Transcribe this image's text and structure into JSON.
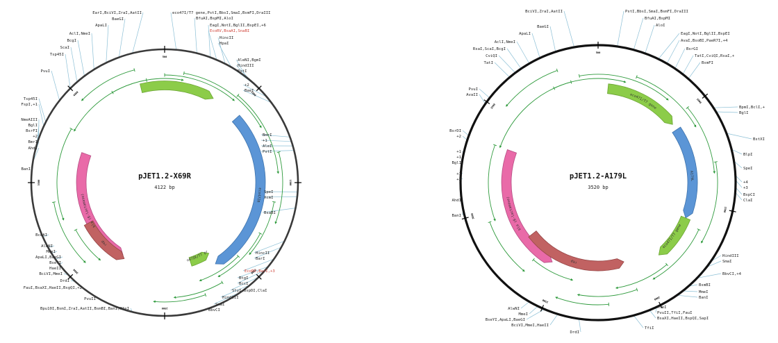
{
  "maps": [
    {
      "id": "map1",
      "title": "pJET1.2-X69R",
      "size_text": "4122 bp",
      "ticks": [
        "500",
        "1000",
        "1500",
        "2000",
        "2500",
        "3000",
        "3500",
        "4000"
      ],
      "features": [
        {
          "label": "bla (ß-lactamase)",
          "color": "#e96aa8"
        },
        {
          "label": "eco47IR",
          "color": "#5b95d6"
        },
        {
          "label": "rep",
          "color": "#c16262"
        },
        {
          "label": "eco47IR/T7 prom",
          "color": "#8ccc49"
        },
        {
          "label": "",
          "color": "#8ccc49"
        }
      ],
      "labels": [
        {
          "text": "EarI,BciVI,ZraI,AatII"
        },
        {
          "text": "BaeGI"
        },
        {
          "text": "ApaLI"
        },
        {
          "text": "AclI,NmeI"
        },
        {
          "text": "BcgI"
        },
        {
          "text": "ScaI"
        },
        {
          "text": "Tsp45I"
        },
        {
          "text": "PvuI"
        },
        {
          "text": "Tsp45I"
        },
        {
          "text": "FspI,+1"
        },
        {
          "text": "NmeAIII"
        },
        {
          "text": "BglI"
        },
        {
          "text": "BsrFI"
        },
        {
          "text": "+2"
        },
        {
          "text": "BmrI"
        },
        {
          "text": "AhdI"
        },
        {
          "text": "BanI"
        },
        {
          "text": "BceAI"
        },
        {
          "text": "AleNI"
        },
        {
          "text": "MmeI"
        },
        {
          "text": "ApaLI,BaeGI"
        },
        {
          "text": "BseYI"
        },
        {
          "text": "HaeII"
        },
        {
          "text": "BciVI,MmeI"
        },
        {
          "text": "DrdI"
        },
        {
          "text": "FauI,BsaXI,HaeII,BsgQI,+2"
        },
        {
          "text": "PvuII"
        },
        {
          "text": "Bpu10I,BsmI,ZraI,AatII,BsmBI,BanI,MfeI"
        },
        {
          "text": "eco47I/T7 gene,PstI,BbsI,SmaI,BsmFI,DraIII"
        },
        {
          "text": "BfuAI,BspMI,AloI"
        },
        {
          "text": "EagI,NotI,BglII,BspEI,+6"
        },
        {
          "text": "EcoRV,BsaAI,SnaBI",
          "red": true
        },
        {
          "text": "HincII"
        },
        {
          "text": "HpaI"
        },
        {
          "text": "AleNI,BgmI"
        },
        {
          "text": "HindIII"
        },
        {
          "text": "PstI"
        },
        {
          "text": "+2"
        },
        {
          "text": "BaeI"
        },
        {
          "text": "BmrI"
        },
        {
          "text": "+1"
        },
        {
          "text": "AleI"
        },
        {
          "text": "PstI"
        },
        {
          "text": "SpeI"
        },
        {
          "text": "XcmI"
        },
        {
          "text": "BsaBI"
        },
        {
          "text": "HincII"
        },
        {
          "text": "BarI"
        },
        {
          "text": "EcoRV,BarI,+3",
          "red": true
        },
        {
          "text": "BtgI"
        },
        {
          "text": "BccI"
        },
        {
          "text": "StyI,BspDI,ClaI"
        },
        {
          "text": "HindIII"
        },
        {
          "text": "SmaI"
        },
        {
          "text": "BbvCI"
        }
      ]
    },
    {
      "id": "map2",
      "title": "pJET1.2-A179L",
      "size_text": "3520 bp",
      "ticks": [
        "500",
        "1000",
        "1500",
        "2000",
        "2500",
        "3000",
        "3500"
      ],
      "features": [
        {
          "label": "bla (ß-lactamase)",
          "color": "#e96aa8"
        },
        {
          "label": "A179L",
          "color": "#5b95d6"
        },
        {
          "label": "rep",
          "color": "#c16262"
        },
        {
          "label": "eco47I/T7 gene",
          "color": "#8ccc49"
        },
        {
          "label": "eco47I/T7 gene",
          "color": "#8ccc49"
        }
      ],
      "labels": [
        {
          "text": "BciVI,ZraI,AatII"
        },
        {
          "text": "BaeGI"
        },
        {
          "text": "ApaLI"
        },
        {
          "text": "AclI,NmeI"
        },
        {
          "text": "RsaI,ScaI,BcgI"
        },
        {
          "text": "CviQI"
        },
        {
          "text": "TatI"
        },
        {
          "text": "PvuI"
        },
        {
          "text": "AvaII"
        },
        {
          "text": "BsrDI"
        },
        {
          "text": "+2"
        },
        {
          "text": "+1"
        },
        {
          "text": "+1"
        },
        {
          "text": "BglI"
        },
        {
          "text": "+1"
        },
        {
          "text": "+3"
        },
        {
          "text": "AhdI"
        },
        {
          "text": "BanI"
        },
        {
          "text": "AlwNI"
        },
        {
          "text": "MmeI"
        },
        {
          "text": "BseYI,ApaLI,BaeGI"
        },
        {
          "text": "BciVI,MmeI,HaeII"
        },
        {
          "text": "DrdI"
        },
        {
          "text": "TfiI"
        },
        {
          "text": "BsaXI,HaeII,BspQI,SapI"
        },
        {
          "text": "PvuII,TfiI,FauI"
        },
        {
          "text": "MfeI"
        },
        {
          "text": "BanI"
        },
        {
          "text": "MmeI"
        },
        {
          "text": "BsmBI"
        },
        {
          "text": "BbvCI,+4"
        },
        {
          "text": "SmaI"
        },
        {
          "text": "HindIII"
        },
        {
          "text": "PstI,BbsI,SmaI,BsmFI,DraIII"
        },
        {
          "text": "BfuAI,BspMI"
        },
        {
          "text": "AloI"
        },
        {
          "text": "EagI,NotI,BglII,BspEI"
        },
        {
          "text": "AvaI,BsoBI,PaeR7I,+4"
        },
        {
          "text": "BsrGI"
        },
        {
          "text": "TatI,CviQI,RsaI,+"
        },
        {
          "text": "BsmFI"
        },
        {
          "text": "BpmI,BclI,+"
        },
        {
          "text": "BglI"
        },
        {
          "text": "BstXI"
        },
        {
          "text": "BlpI"
        },
        {
          "text": "SpeI"
        },
        {
          "text": "+4"
        },
        {
          "text": "+3"
        },
        {
          "text": "BspCI"
        },
        {
          "text": "ClaI"
        }
      ]
    }
  ]
}
